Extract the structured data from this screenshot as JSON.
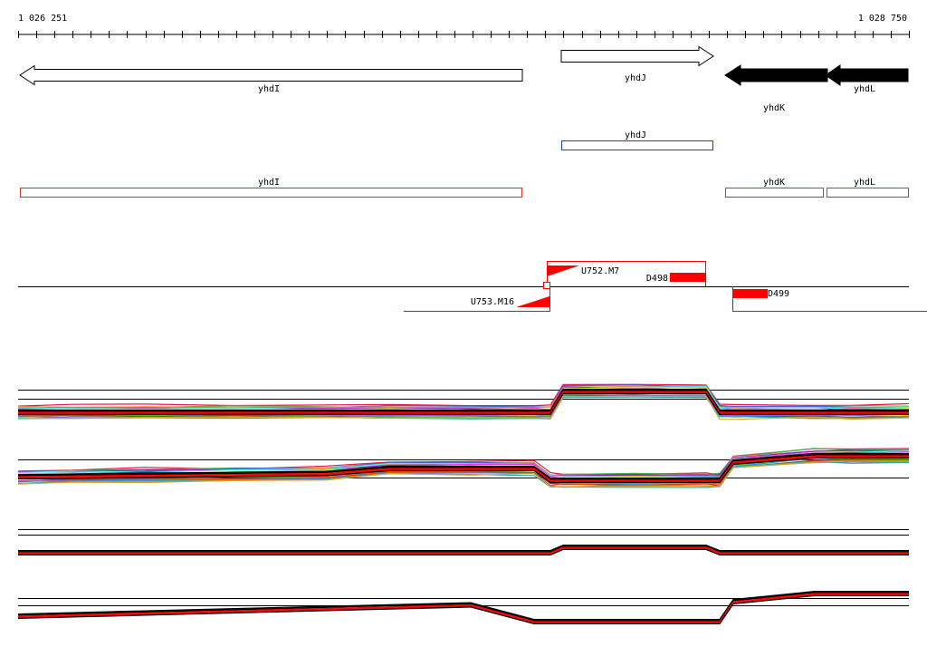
{
  "ruler": {
    "start_label": "1 026 251",
    "end_label": "1 028 750"
  },
  "genes": [
    {
      "name": "yhdI",
      "strand": "-",
      "style": "outline"
    },
    {
      "name": "yhdJ",
      "strand": "+",
      "style": "outline"
    },
    {
      "name": "yhdK",
      "strand": "-",
      "style": "filled"
    },
    {
      "name": "yhdL",
      "strand": "-",
      "style": "filled"
    }
  ],
  "annotations": {
    "blue": [
      {
        "name": "yhdJ"
      }
    ],
    "red": [
      {
        "name": "yhdI"
      },
      {
        "name": "yhdK"
      },
      {
        "name": "yhdL"
      }
    ]
  },
  "features": {
    "upstream": [
      {
        "label": "U752.M7",
        "strand": "+"
      },
      {
        "label": "U753.M16",
        "strand": "-"
      }
    ],
    "downstream": [
      {
        "label": "D498",
        "strand": "+"
      },
      {
        "label": "D499",
        "strand": "-"
      }
    ]
  },
  "colors": {
    "outline_gene": "#000000",
    "filled_gene": "#000000",
    "blue_annotation": "#1f3fbf",
    "red_annotation": "#e0301e",
    "feature": "#ff0000",
    "baseline": "#000000"
  },
  "expression_tracks": [
    {
      "kind": "multicolor"
    },
    {
      "kind": "multicolor"
    },
    {
      "kind": "black-red"
    },
    {
      "kind": "black-red"
    }
  ]
}
